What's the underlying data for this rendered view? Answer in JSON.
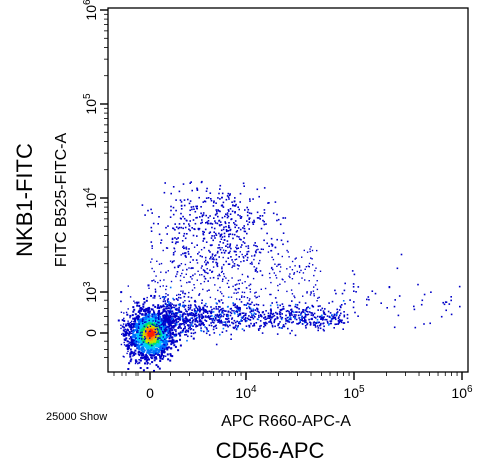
{
  "figure": {
    "outer_xlabel": "CD56-APC",
    "outer_ylabel": "NKB1-FITC",
    "event_note": "25000 Show"
  },
  "chart_data": {
    "type": "scatter",
    "title": "",
    "xlabel": "APC R660-APC-A",
    "ylabel": "FITC B525-FITC-A",
    "x_scale": "biexponential",
    "y_scale": "biexponential",
    "xlim": [
      -400,
      1000000
    ],
    "ylim": [
      -400,
      10000000
    ],
    "x_ticks": [
      {
        "value": 0,
        "label": "0"
      },
      {
        "value": 10000,
        "label": "10^4"
      },
      {
        "value": 100000,
        "label": "10^5"
      },
      {
        "value": 1000000,
        "label": "10^6"
      }
    ],
    "y_ticks": [
      {
        "value": 0,
        "label": "0"
      },
      {
        "value": 1000,
        "label": "10^3"
      },
      {
        "value": 10000,
        "label": "10^4"
      },
      {
        "value": 100000,
        "label": "10^5"
      },
      {
        "value": 1000000,
        "label": "10^6"
      }
    ],
    "density_colors": [
      "#0000c8",
      "#0070ff",
      "#00c8ff",
      "#00e070",
      "#c8e000",
      "#ff9000",
      "#ff2000"
    ],
    "populations": [
      {
        "x_center": 0,
        "y_center": 0,
        "x_spread": 700,
        "y_spread": 500,
        "density": "very high"
      },
      {
        "x_center": 15000,
        "y_center": 100,
        "x_spread": 20000,
        "y_spread": 400,
        "density": "medium"
      },
      {
        "x_center": 6000,
        "y_center": 4000,
        "x_spread": 5000,
        "y_spread": 3000,
        "density": "low"
      }
    ]
  },
  "colors": {
    "axis": "#000000",
    "background": "#ffffff",
    "frame": "#000000"
  }
}
